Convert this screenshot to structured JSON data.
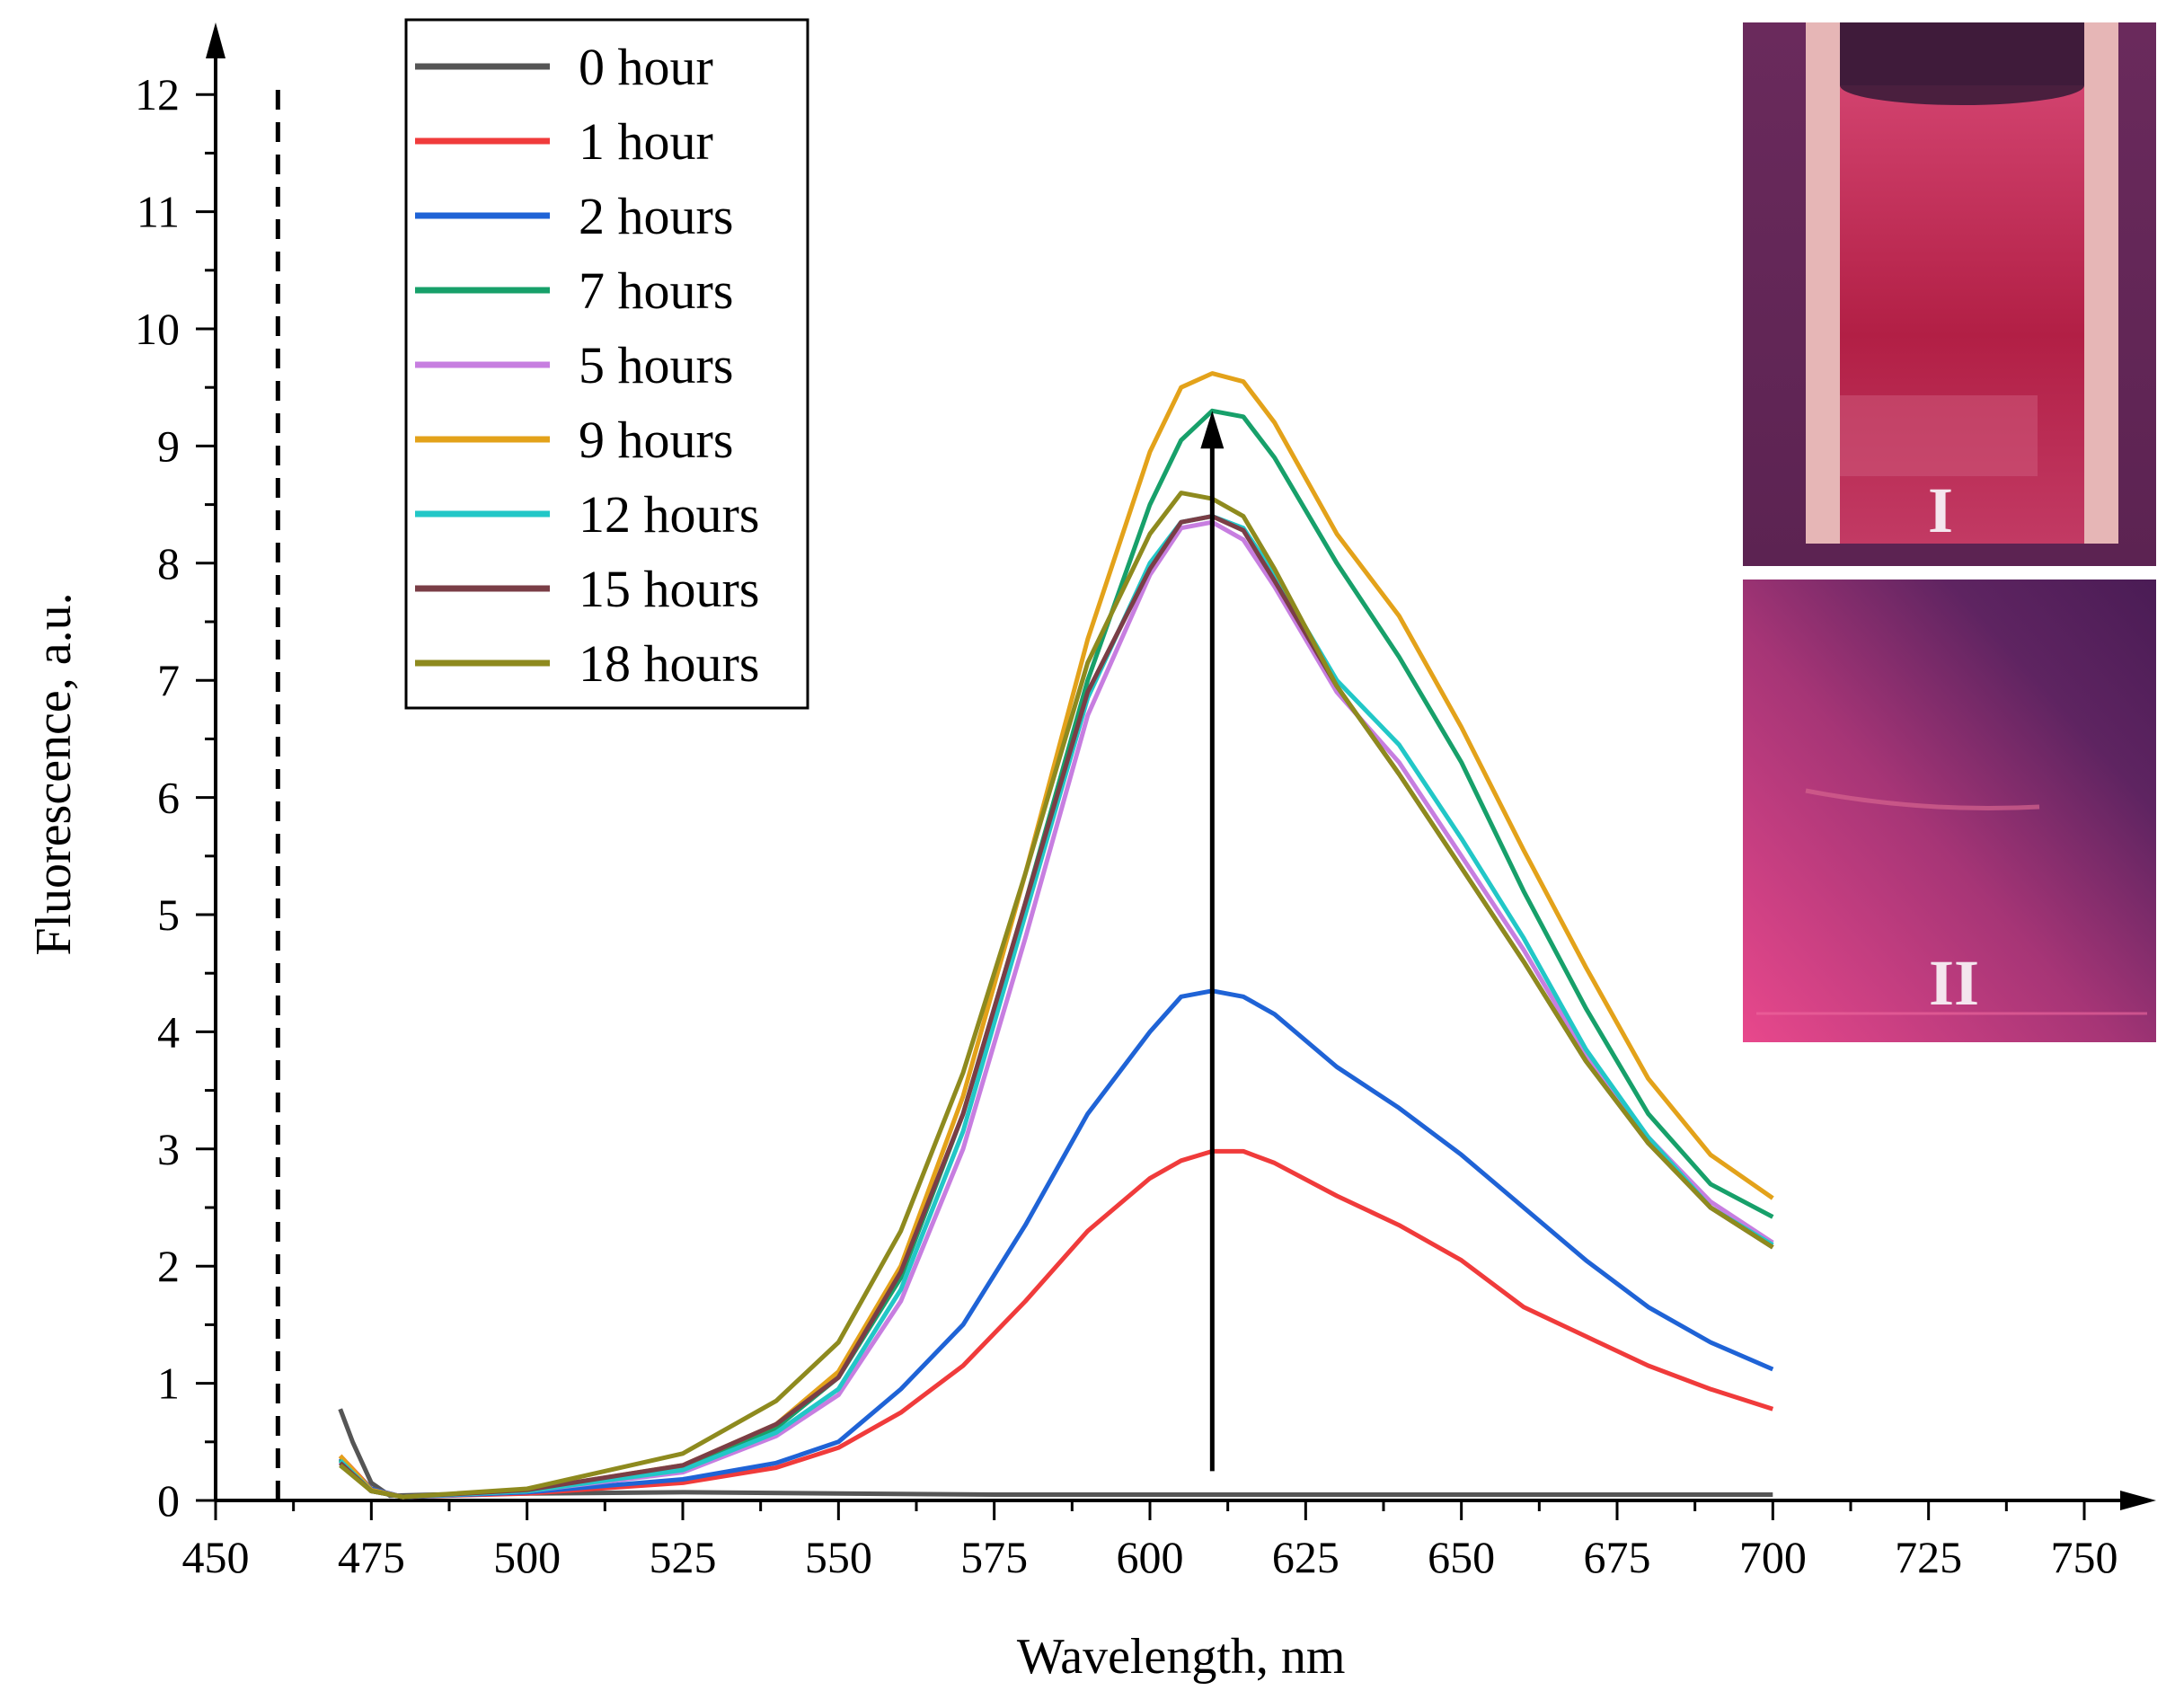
{
  "chart_data": {
    "type": "line",
    "title": "",
    "xlabel": "Wavelength, nm",
    "ylabel": "Fluorescence, a.u.",
    "xlim": [
      450,
      750
    ],
    "ylim": [
      0,
      12.5
    ],
    "x_ticks": [
      450,
      475,
      500,
      525,
      550,
      575,
      600,
      625,
      650,
      675,
      700,
      725,
      750
    ],
    "y_ticks": [
      0,
      1,
      2,
      3,
      4,
      5,
      6,
      7,
      8,
      9,
      10,
      11,
      12
    ],
    "excitation_line_x": 460,
    "arrow": {
      "x": 610,
      "y_start": 0.25,
      "y_end": 9.3,
      "direction": "up"
    },
    "legend_position": "top-left",
    "series": [
      {
        "name": "0 hour",
        "color": "#555555",
        "x": [
          470,
          472,
          475,
          478,
          485,
          500,
          525,
          550,
          575,
          600,
          625,
          650,
          675,
          700
        ],
        "values": [
          0.78,
          0.5,
          0.15,
          0.04,
          0.05,
          0.06,
          0.07,
          0.06,
          0.05,
          0.05,
          0.05,
          0.05,
          0.05,
          0.05
        ]
      },
      {
        "name": "1 hour",
        "color": "#f03b3b",
        "x": [
          470,
          475,
          480,
          500,
          525,
          540,
          550,
          560,
          570,
          580,
          590,
          600,
          605,
          610,
          615,
          620,
          630,
          640,
          650,
          660,
          670,
          680,
          690,
          700
        ],
        "values": [
          0.38,
          0.1,
          0.03,
          0.06,
          0.15,
          0.28,
          0.45,
          0.75,
          1.15,
          1.7,
          2.3,
          2.75,
          2.9,
          2.98,
          2.98,
          2.88,
          2.6,
          2.35,
          2.05,
          1.65,
          1.4,
          1.15,
          0.95,
          0.78
        ]
      },
      {
        "name": "2 hours",
        "color": "#1f63d6",
        "x": [
          470,
          475,
          480,
          500,
          525,
          540,
          550,
          560,
          570,
          580,
          590,
          600,
          605,
          610,
          615,
          620,
          630,
          640,
          650,
          660,
          670,
          680,
          690,
          700
        ],
        "values": [
          0.36,
          0.1,
          0.03,
          0.07,
          0.18,
          0.32,
          0.5,
          0.95,
          1.5,
          2.35,
          3.3,
          4.0,
          4.3,
          4.35,
          4.3,
          4.15,
          3.7,
          3.35,
          2.95,
          2.5,
          2.05,
          1.65,
          1.35,
          1.12
        ]
      },
      {
        "name": "7 hours",
        "color": "#17a06a",
        "x": [
          470,
          475,
          480,
          500,
          525,
          540,
          550,
          560,
          570,
          580,
          590,
          600,
          605,
          610,
          615,
          620,
          630,
          640,
          650,
          660,
          670,
          680,
          690,
          700
        ],
        "values": [
          0.35,
          0.08,
          0.03,
          0.09,
          0.28,
          0.62,
          1.05,
          1.9,
          3.3,
          5.1,
          7.0,
          8.5,
          9.05,
          9.3,
          9.25,
          8.9,
          8.0,
          7.2,
          6.3,
          5.2,
          4.2,
          3.3,
          2.7,
          2.42
        ]
      },
      {
        "name": "5 hours",
        "color": "#c77ee0",
        "x": [
          470,
          475,
          480,
          500,
          525,
          540,
          550,
          560,
          570,
          580,
          590,
          600,
          605,
          610,
          615,
          620,
          630,
          640,
          650,
          660,
          670,
          680,
          690,
          700
        ],
        "values": [
          0.33,
          0.08,
          0.03,
          0.08,
          0.24,
          0.55,
          0.9,
          1.7,
          3.0,
          4.8,
          6.7,
          7.9,
          8.3,
          8.35,
          8.2,
          7.8,
          6.9,
          6.3,
          5.5,
          4.7,
          3.8,
          3.1,
          2.55,
          2.2
        ]
      },
      {
        "name": "9 hours",
        "color": "#e3a21a",
        "x": [
          470,
          475,
          480,
          500,
          525,
          540,
          550,
          560,
          570,
          580,
          590,
          600,
          605,
          610,
          615,
          620,
          630,
          640,
          650,
          660,
          670,
          680,
          690,
          700
        ],
        "values": [
          0.38,
          0.09,
          0.03,
          0.09,
          0.3,
          0.65,
          1.1,
          2.0,
          3.45,
          5.35,
          7.35,
          8.95,
          9.5,
          9.62,
          9.55,
          9.2,
          8.25,
          7.55,
          6.6,
          5.55,
          4.55,
          3.6,
          2.95,
          2.58
        ]
      },
      {
        "name": "12 hours",
        "color": "#22c7c7",
        "x": [
          470,
          475,
          480,
          500,
          525,
          540,
          550,
          560,
          570,
          580,
          590,
          600,
          605,
          610,
          615,
          620,
          630,
          640,
          650,
          660,
          670,
          680,
          690,
          700
        ],
        "values": [
          0.34,
          0.08,
          0.03,
          0.08,
          0.26,
          0.58,
          0.95,
          1.8,
          3.15,
          5.0,
          6.85,
          8.0,
          8.35,
          8.4,
          8.3,
          7.9,
          7.0,
          6.45,
          5.65,
          4.8,
          3.85,
          3.1,
          2.5,
          2.18
        ]
      },
      {
        "name": "15 hours",
        "color": "#7a3e46",
        "x": [
          470,
          475,
          480,
          500,
          525,
          540,
          550,
          560,
          570,
          580,
          590,
          600,
          605,
          610,
          615,
          620,
          630,
          640,
          650,
          660,
          670,
          680,
          690,
          700
        ],
        "values": [
          0.32,
          0.08,
          0.03,
          0.09,
          0.3,
          0.65,
          1.05,
          1.95,
          3.3,
          5.1,
          6.9,
          7.95,
          8.35,
          8.4,
          8.28,
          7.85,
          6.95,
          6.2,
          5.4,
          4.6,
          3.75,
          3.05,
          2.5,
          2.16
        ]
      },
      {
        "name": "18 hours",
        "color": "#8e8a1e",
        "x": [
          470,
          475,
          480,
          500,
          525,
          540,
          550,
          560,
          570,
          580,
          590,
          600,
          605,
          610,
          615,
          620,
          630,
          640,
          650,
          660,
          670,
          680,
          690,
          700
        ],
        "values": [
          0.3,
          0.08,
          0.03,
          0.1,
          0.4,
          0.85,
          1.35,
          2.3,
          3.65,
          5.35,
          7.15,
          8.25,
          8.6,
          8.55,
          8.4,
          7.95,
          6.95,
          6.2,
          5.4,
          4.6,
          3.75,
          3.05,
          2.5,
          2.16
        ]
      }
    ]
  },
  "insets": [
    {
      "label": "I"
    },
    {
      "label": "II"
    }
  ]
}
